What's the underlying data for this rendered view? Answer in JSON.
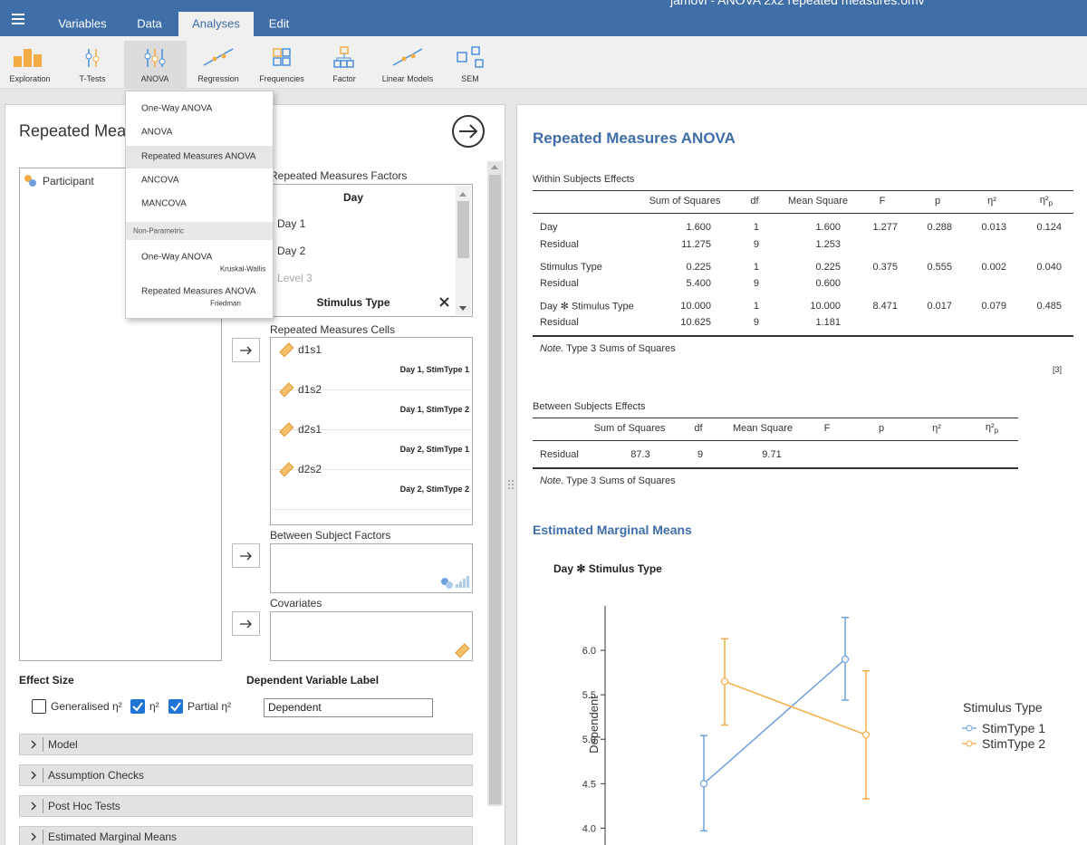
{
  "window_title": "jamovi - ANOVA 2x2 repeated measures.omv",
  "menu_tabs": [
    {
      "label": "Variables",
      "selected": false
    },
    {
      "label": "Data",
      "selected": false
    },
    {
      "label": "Analyses",
      "selected": true
    },
    {
      "label": "Edit",
      "selected": false
    }
  ],
  "ribbon": [
    {
      "label": "Exploration",
      "selected": false
    },
    {
      "label": "T-Tests",
      "selected": false
    },
    {
      "label": "ANOVA",
      "selected": true
    },
    {
      "label": "Regression",
      "selected": false
    },
    {
      "label": "Frequencies",
      "selected": false
    },
    {
      "label": "Factor",
      "selected": false
    },
    {
      "label": "Linear Models",
      "selected": false
    },
    {
      "label": "SEM",
      "selected": false
    }
  ],
  "dropdown": {
    "items": [
      {
        "label": "One-Way ANOVA",
        "highlighted": false
      },
      {
        "label": "ANOVA",
        "highlighted": false
      },
      {
        "label": "Repeated Measures ANOVA",
        "highlighted": true
      },
      {
        "label": "ANCOVA",
        "highlighted": false
      },
      {
        "label": "MANCOVA",
        "highlighted": false
      }
    ],
    "section": "Non-Parametric",
    "section_items": [
      {
        "label": "One-Way ANOVA",
        "sublabel": "Kruskal-Wallis"
      },
      {
        "label": "Repeated Measures ANOVA",
        "sublabel": "Friedman"
      }
    ]
  },
  "analysis_panel": {
    "title": "Repeated Measures ANOVA",
    "variables": [
      "Participant"
    ],
    "rm_factors_label": "Repeated Measures Factors",
    "factors": [
      {
        "name": "Day",
        "levels": [
          "Day 1",
          "Day 2"
        ],
        "placeholder": "Level 3"
      },
      {
        "name": "Stimulus Type"
      }
    ],
    "cells_label": "Repeated Measures Cells",
    "cells": [
      {
        "name": "d1s1",
        "levels": "Day 1, StimType 1"
      },
      {
        "name": "d1s2",
        "levels": "Day 1, StimType 2"
      },
      {
        "name": "d2s1",
        "levels": "Day 2, StimType 1"
      },
      {
        "name": "d2s2",
        "levels": "Day 2, StimType 2"
      }
    ],
    "between_label": "Between Subject Factors",
    "covariates_label": "Covariates",
    "effect_size_label": "Effect Size",
    "effect_size_options": [
      {
        "label": "Generalised η²",
        "checked": false
      },
      {
        "label": "η²",
        "checked": true
      },
      {
        "label": "Partial η²",
        "checked": true
      }
    ],
    "dv_label_title": "Dependent Variable Label",
    "dv_label_value": "Dependent",
    "sections": [
      "Model",
      "Assumption Checks",
      "Post Hoc Tests",
      "Estimated Marginal Means"
    ]
  },
  "results": {
    "title": "Repeated Measures ANOVA",
    "within": {
      "caption": "Within Subjects Effects",
      "columns": [
        "Sum of Squares",
        "df",
        "Mean Square",
        "F",
        "p",
        "η²",
        {
          "symbol": "η²",
          "subscript": "p"
        }
      ],
      "rows": [
        {
          "term": "Day",
          "cells": [
            "1.600",
            "1",
            "1.600",
            "1.277",
            "0.288",
            "0.013",
            "0.124"
          ]
        },
        {
          "term": "Residual",
          "cells": [
            "11.275",
            "9",
            "1.253"
          ]
        },
        {
          "term": "Stimulus Type",
          "cells": [
            "0.225",
            "1",
            "0.225",
            "0.375",
            "0.555",
            "0.002",
            "0.040"
          ]
        },
        {
          "term": "Residual",
          "cells": [
            "5.400",
            "9",
            "0.600"
          ]
        },
        {
          "term": "Day ✻ Stimulus Type",
          "cells": [
            "10.000",
            "1",
            "10.000",
            "8.471",
            "0.017",
            "0.079",
            "0.485"
          ]
        },
        {
          "term": "Residual",
          "cells": [
            "10.625",
            "9",
            "1.181"
          ]
        }
      ],
      "note_label": "Note.",
      "note_text": "Type 3 Sums of Squares"
    },
    "reference": "[3]",
    "between": {
      "caption": "Between Subjects Effects",
      "columns": [
        "Sum of Squares",
        "df",
        "Mean Square",
        "F",
        "p",
        "η²",
        {
          "symbol": "η²",
          "subscript": "p"
        }
      ],
      "rows": [
        {
          "term": "Residual",
          "cells": [
            "87.3",
            "9",
            "9.71"
          ]
        }
      ],
      "note_label": "Note.",
      "note_text": "Type 3 Sums of Squares"
    },
    "emm_title": "Estimated Marginal Means",
    "plot": {
      "type": "line",
      "title": "Day ✻ Stimulus Type",
      "y_label": "Dependent",
      "categories": [
        null,
        null
      ],
      "legend_title": "Stimulus Type",
      "series": [
        {
          "name": "StimType 1",
          "color": "#6fa0dc",
          "values": [
            4.5,
            5.9
          ],
          "lower": [
            3.97,
            5.44
          ],
          "upper": [
            5.04,
            6.37
          ]
        },
        {
          "name": "StimType 2",
          "color": "#f4ad45",
          "values": [
            5.65,
            5.05
          ],
          "lower": [
            5.16,
            4.33
          ],
          "upper": [
            6.13,
            5.77
          ]
        }
      ],
      "ylim": [
        3.8,
        6.5
      ],
      "yticks": [
        {
          "value": 4.0,
          "label": "4.0"
        },
        4.5,
        {
          "value": 5.0,
          "label": "5.0"
        },
        5.5,
        {
          "value": 6.0,
          "label": "6.0"
        }
      ]
    }
  }
}
